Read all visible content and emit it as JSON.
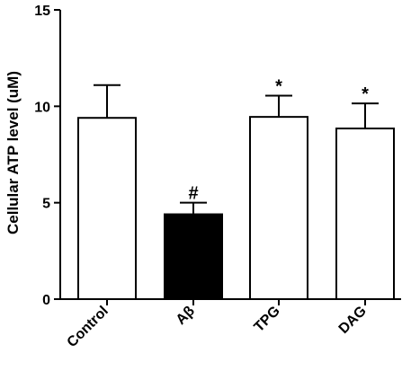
{
  "chart_data": {
    "type": "bar",
    "ylabel": "Cellular ATP level (uM)",
    "ylim": [
      0,
      15
    ],
    "yticks": [
      "0",
      "5",
      "10",
      "15"
    ],
    "ytick_values": [
      0,
      5,
      10,
      15
    ],
    "categories": [
      "Control",
      "Aβ",
      "TPG",
      "DAG"
    ],
    "values": [
      9.4,
      4.4,
      9.45,
      8.85
    ],
    "error": [
      1.7,
      0.6,
      1.1,
      1.3
    ],
    "annotations": [
      "",
      "#",
      "*",
      "*"
    ],
    "bar_fill": [
      "#ffffff",
      "#000000",
      "#ffffff",
      "#ffffff"
    ],
    "bar_stroke": "#000000",
    "grid": false,
    "legend": "none"
  }
}
